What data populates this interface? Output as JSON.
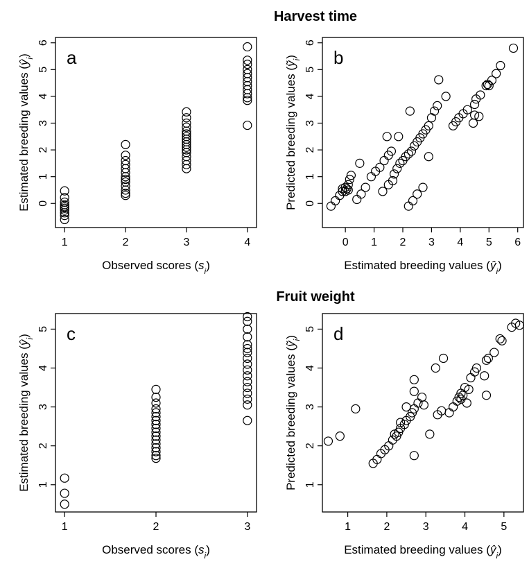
{
  "figure": {
    "section_titles": [
      "Harvest time",
      "Fruit weight"
    ]
  },
  "chart_data": [
    {
      "panel": "a",
      "type": "scatter",
      "xlabel": "Observed scores (s_i)",
      "ylabel": "Estimated breeding values (ŷ_i)",
      "xlim": [
        0.85,
        4.15
      ],
      "ylim": [
        -0.9,
        6.2
      ],
      "xticks": [
        1,
        2,
        3,
        4
      ],
      "yticks": [
        0,
        1,
        2,
        3,
        4,
        5,
        6
      ],
      "points": [
        [
          1,
          0.47
        ],
        [
          1,
          0.22
        ],
        [
          1,
          0.05
        ],
        [
          1,
          -0.05
        ],
        [
          1,
          -0.12
        ],
        [
          1,
          -0.18
        ],
        [
          1,
          -0.25
        ],
        [
          1,
          -0.35
        ],
        [
          1,
          -0.45
        ],
        [
          1,
          -0.6
        ],
        [
          2,
          2.2
        ],
        [
          2,
          1.8
        ],
        [
          2,
          1.6
        ],
        [
          2,
          1.45
        ],
        [
          2,
          1.3
        ],
        [
          2,
          1.15
        ],
        [
          2,
          1.0
        ],
        [
          2,
          0.9
        ],
        [
          2,
          0.8
        ],
        [
          2,
          0.65
        ],
        [
          2,
          0.5
        ],
        [
          2,
          0.38
        ],
        [
          2,
          0.3
        ],
        [
          3,
          3.42
        ],
        [
          3,
          3.2
        ],
        [
          3,
          3.0
        ],
        [
          3,
          2.85
        ],
        [
          3,
          2.7
        ],
        [
          3,
          2.6
        ],
        [
          3,
          2.5
        ],
        [
          3,
          2.4
        ],
        [
          3,
          2.3
        ],
        [
          3,
          2.2
        ],
        [
          3,
          2.1
        ],
        [
          3,
          2.0
        ],
        [
          3,
          1.9
        ],
        [
          3,
          1.75
        ],
        [
          3,
          1.6
        ],
        [
          3,
          1.45
        ],
        [
          3,
          1.3
        ],
        [
          4,
          5.85
        ],
        [
          4,
          5.35
        ],
        [
          4,
          5.2
        ],
        [
          4,
          5.0
        ],
        [
          4,
          4.85
        ],
        [
          4,
          4.7
        ],
        [
          4,
          4.55
        ],
        [
          4,
          4.4
        ],
        [
          4,
          4.25
        ],
        [
          4,
          4.1
        ],
        [
          4,
          3.95
        ],
        [
          4,
          3.85
        ],
        [
          4,
          2.92
        ]
      ]
    },
    {
      "panel": "b",
      "type": "scatter",
      "xlabel": "Estimated breeding values (ŷ_i)",
      "ylabel": "Predicted breeding values (ỹ_i)",
      "xlim": [
        -0.8,
        6.2
      ],
      "ylim": [
        -0.9,
        6.2
      ],
      "xticks": [
        0,
        1,
        2,
        3,
        4,
        5,
        6
      ],
      "yticks": [
        0,
        1,
        2,
        3,
        4,
        5,
        6
      ],
      "points": [
        [
          -0.5,
          -0.1
        ],
        [
          -0.35,
          0.1
        ],
        [
          -0.2,
          0.3
        ],
        [
          -0.1,
          0.45
        ],
        [
          0,
          0.6
        ],
        [
          0.05,
          0.55
        ],
        [
          0.1,
          0.7
        ],
        [
          0.15,
          0.9
        ],
        [
          0.2,
          1.05
        ],
        [
          0.5,
          1.5
        ],
        [
          -0.1,
          0.55
        ],
        [
          0,
          0.45
        ],
        [
          0.1,
          0.5
        ],
        [
          0.4,
          0.15
        ],
        [
          0.55,
          0.35
        ],
        [
          0.7,
          0.6
        ],
        [
          0.9,
          1.0
        ],
        [
          1.05,
          1.2
        ],
        [
          1.2,
          1.35
        ],
        [
          1.35,
          1.6
        ],
        [
          1.5,
          1.8
        ],
        [
          1.6,
          1.95
        ],
        [
          1.45,
          2.5
        ],
        [
          1.85,
          2.5
        ],
        [
          1.7,
          1.1
        ],
        [
          1.8,
          1.3
        ],
        [
          1.9,
          1.5
        ],
        [
          1.3,
          0.45
        ],
        [
          1.5,
          0.7
        ],
        [
          1.65,
          0.85
        ],
        [
          2.0,
          1.6
        ],
        [
          2.1,
          1.75
        ],
        [
          2.2,
          1.85
        ],
        [
          2.3,
          1.95
        ],
        [
          2.4,
          2.15
        ],
        [
          2.5,
          2.3
        ],
        [
          2.6,
          2.45
        ],
        [
          2.7,
          2.6
        ],
        [
          2.8,
          2.75
        ],
        [
          2.9,
          2.9
        ],
        [
          2.25,
          3.45
        ],
        [
          2.2,
          -0.1
        ],
        [
          2.35,
          0.1
        ],
        [
          2.5,
          0.35
        ],
        [
          2.7,
          0.6
        ],
        [
          2.9,
          1.75
        ],
        [
          3.0,
          3.2
        ],
        [
          3.1,
          3.45
        ],
        [
          3.2,
          3.65
        ],
        [
          3.5,
          4.0
        ],
        [
          3.25,
          4.62
        ],
        [
          3.75,
          2.9
        ],
        [
          3.85,
          3.05
        ],
        [
          3.95,
          3.2
        ],
        [
          4.1,
          3.35
        ],
        [
          4.25,
          3.5
        ],
        [
          4.5,
          3.7
        ],
        [
          4.55,
          3.9
        ],
        [
          4.7,
          4.05
        ],
        [
          4.9,
          4.4
        ],
        [
          4.95,
          4.45
        ],
        [
          5.0,
          4.4
        ],
        [
          5.1,
          4.6
        ],
        [
          5.25,
          4.85
        ],
        [
          5.4,
          5.15
        ],
        [
          5.85,
          5.8
        ],
        [
          4.45,
          3.0
        ],
        [
          4.5,
          3.3
        ],
        [
          4.65,
          3.25
        ]
      ]
    },
    {
      "panel": "c",
      "type": "scatter",
      "xlabel": "Observed scores (s_i)",
      "ylabel": "Estimated breeding values (ŷ_i)",
      "xlim": [
        0.9,
        3.1
      ],
      "ylim": [
        0.3,
        5.4
      ],
      "xticks": [
        1,
        2,
        3
      ],
      "yticks": [
        1,
        2,
        3,
        4,
        5
      ],
      "points": [
        [
          1,
          1.17
        ],
        [
          1,
          0.78
        ],
        [
          1,
          0.5
        ],
        [
          2,
          3.45
        ],
        [
          2,
          3.25
        ],
        [
          2,
          3.1
        ],
        [
          2,
          2.95
        ],
        [
          2,
          2.85
        ],
        [
          2,
          2.75
        ],
        [
          2,
          2.65
        ],
        [
          2,
          2.55
        ],
        [
          2,
          2.45
        ],
        [
          2,
          2.35
        ],
        [
          2,
          2.25
        ],
        [
          2,
          2.15
        ],
        [
          2,
          2.05
        ],
        [
          2,
          1.95
        ],
        [
          2,
          1.85
        ],
        [
          2,
          1.75
        ],
        [
          2,
          1.68
        ],
        [
          3,
          5.32
        ],
        [
          3,
          5.2
        ],
        [
          3,
          5.0
        ],
        [
          3,
          4.8
        ],
        [
          3,
          4.6
        ],
        [
          3,
          4.5
        ],
        [
          3,
          4.4
        ],
        [
          3,
          4.25
        ],
        [
          3,
          4.1
        ],
        [
          3,
          3.95
        ],
        [
          3,
          3.8
        ],
        [
          3,
          3.65
        ],
        [
          3,
          3.5
        ],
        [
          3,
          3.35
        ],
        [
          3,
          3.2
        ],
        [
          3,
          3.05
        ],
        [
          3,
          2.65
        ]
      ]
    },
    {
      "panel": "d",
      "type": "scatter",
      "xlabel": "Estimated breeding values (ŷ_i)",
      "ylabel": "Predicted breeding values (ỹ_i)",
      "xlim": [
        0.35,
        5.5
      ],
      "ylim": [
        0.3,
        5.4
      ],
      "xticks": [
        1,
        2,
        3,
        4,
        5
      ],
      "yticks": [
        1,
        2,
        3,
        4,
        5
      ],
      "points": [
        [
          0.5,
          2.12
        ],
        [
          0.8,
          2.25
        ],
        [
          1.2,
          2.95
        ],
        [
          1.65,
          1.55
        ],
        [
          1.75,
          1.65
        ],
        [
          1.85,
          1.8
        ],
        [
          1.95,
          1.9
        ],
        [
          2.05,
          2.0
        ],
        [
          2.15,
          2.15
        ],
        [
          2.25,
          2.25
        ],
        [
          2.3,
          2.35
        ],
        [
          2.35,
          2.45
        ],
        [
          2.45,
          2.55
        ],
        [
          2.5,
          2.65
        ],
        [
          2.6,
          2.75
        ],
        [
          2.65,
          2.85
        ],
        [
          2.7,
          2.95
        ],
        [
          2.8,
          3.1
        ],
        [
          2.9,
          3.25
        ],
        [
          2.95,
          3.05
        ],
        [
          2.5,
          3.0
        ],
        [
          2.7,
          3.4
        ],
        [
          2.7,
          3.7
        ],
        [
          2.2,
          2.3
        ],
        [
          2.35,
          2.6
        ],
        [
          2.7,
          1.75
        ],
        [
          3.1,
          2.3
        ],
        [
          3.25,
          4.0
        ],
        [
          3.45,
          4.25
        ],
        [
          3.3,
          2.8
        ],
        [
          3.4,
          2.9
        ],
        [
          3.6,
          2.85
        ],
        [
          3.7,
          3.0
        ],
        [
          3.8,
          3.15
        ],
        [
          3.85,
          3.25
        ],
        [
          3.9,
          3.35
        ],
        [
          4.0,
          3.5
        ],
        [
          4.05,
          3.1
        ],
        [
          3.9,
          3.2
        ],
        [
          3.95,
          3.3
        ],
        [
          4.1,
          3.45
        ],
        [
          4.15,
          3.75
        ],
        [
          4.25,
          3.9
        ],
        [
          4.3,
          4.0
        ],
        [
          4.55,
          4.2
        ],
        [
          4.6,
          4.25
        ],
        [
          4.75,
          4.4
        ],
        [
          4.5,
          3.8
        ],
        [
          4.55,
          3.3
        ],
        [
          4.9,
          4.75
        ],
        [
          4.95,
          4.7
        ],
        [
          5.2,
          5.05
        ],
        [
          5.3,
          5.15
        ],
        [
          5.4,
          5.1
        ]
      ]
    }
  ]
}
